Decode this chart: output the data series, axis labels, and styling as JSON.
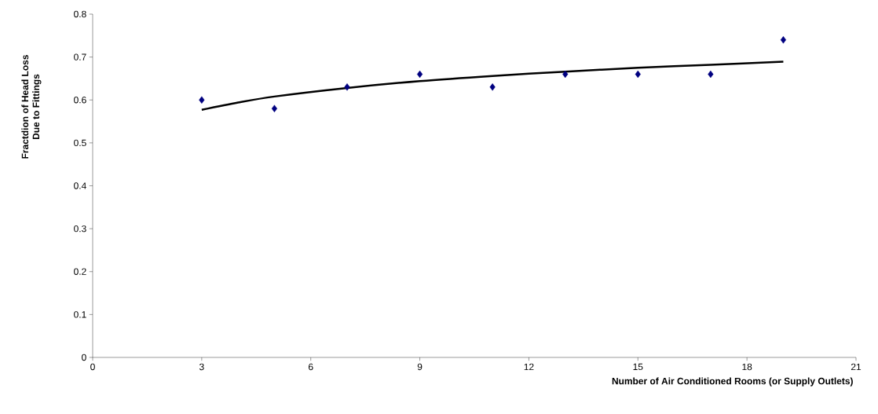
{
  "chart_data": {
    "type": "scatter",
    "xlabel": "Number of Air Conditioned Rooms (or Supply Outlets)",
    "ylabel": "Fractdion of Head Loss Due to Fittings",
    "xlim": [
      0,
      21
    ],
    "xticks": [
      0,
      3,
      6,
      9,
      12,
      15,
      18,
      21
    ],
    "ylim": [
      0,
      0.8
    ],
    "yticks": [
      0,
      0.1,
      0.2,
      0.3,
      0.4,
      0.5,
      0.6,
      0.7,
      0.8
    ],
    "grid": false,
    "marker": "diamond",
    "series": [
      {
        "color": "#000080",
        "x": [
          3,
          5,
          7,
          9,
          11,
          13,
          15,
          17,
          19
        ],
        "values": [
          0.6,
          0.58,
          0.63,
          0.66,
          0.63,
          0.66,
          0.66,
          0.66,
          0.74
        ]
      },
      {
        "type": "line",
        "color": "#000000",
        "marker": "none",
        "line_style": "solid",
        "x": [
          3,
          4,
          5,
          7,
          9,
          11,
          13,
          15,
          17,
          19
        ],
        "values": [
          0.577,
          0.594,
          0.608,
          0.628,
          0.644,
          0.656,
          0.666,
          0.675,
          0.682,
          0.689
        ]
      }
    ]
  }
}
